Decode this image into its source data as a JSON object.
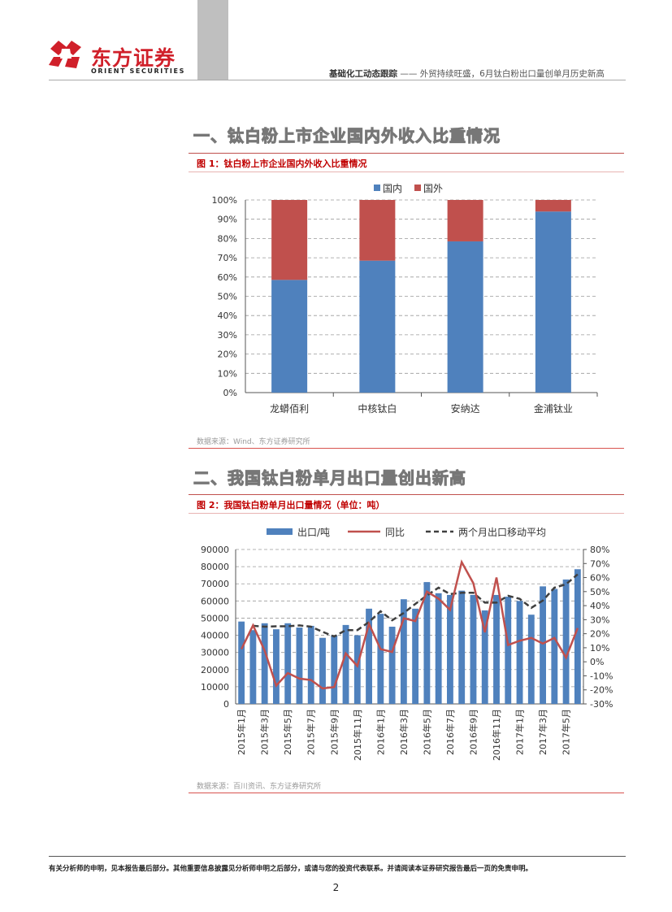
{
  "header": {
    "brand_cn": "东方证券",
    "brand_en": "ORIENT  SECURITIES",
    "report_series": "基础化工动态跟踪",
    "report_dash": " —— ",
    "report_subtitle": "外贸持续旺盛，6月钛白粉出口量创单月历史新高"
  },
  "sections": [
    {
      "title": "一、钛白粉上市企业国内外收入比重情况"
    },
    {
      "title": "二、我国钛白粉单月出口量创出新高"
    }
  ],
  "figures": [
    {
      "title": "图 1：钛白粉上市企业国内外收入比重情况",
      "source": "数据来源：Wind、东方证券研究所"
    },
    {
      "title": "图 2：我国钛白粉单月出口量情况（单位：吨）",
      "source": "数据来源：百川资讯、东方证券研究所"
    }
  ],
  "footer": {
    "disclaimer": "有关分析师的申明，见本报告最后部分。其他重要信息披露见分析师申明之后部分，或请与您的投资代表联系。并请阅读本证券研究报告最后一页的免责申明。",
    "page_number": "2"
  },
  "chart_data": [
    {
      "type": "bar",
      "stacked": true,
      "categories": [
        "龙蟒佰利",
        "中核钛白",
        "安纳达",
        "金浦钛业"
      ],
      "series": [
        {
          "name": "国内",
          "color": "#4f81bd",
          "values": [
            58.5,
            68.5,
            78.5,
            94
          ]
        },
        {
          "name": "国外",
          "color": "#c0504d",
          "values": [
            41.5,
            31.5,
            21.5,
            6
          ]
        }
      ],
      "ylim": [
        0,
        100
      ],
      "yticks": [
        "0%",
        "10%",
        "20%",
        "30%",
        "40%",
        "50%",
        "60%",
        "70%",
        "80%",
        "90%",
        "100%"
      ],
      "legend": "top-center",
      "grid": true
    },
    {
      "type": "bar",
      "combo": true,
      "categories": [
        "2015年1月",
        "2015年2月",
        "2015年3月",
        "2015年4月",
        "2015年5月",
        "2015年6月",
        "2015年7月",
        "2015年8月",
        "2015年9月",
        "2015年10月",
        "2015年11月",
        "2015年12月",
        "2016年1月",
        "2016年2月",
        "2016年3月",
        "2016年4月",
        "2016年5月",
        "2016年6月",
        "2016年7月",
        "2016年8月",
        "2016年9月",
        "2016年10月",
        "2016年11月",
        "2016年12月",
        "2017年1月",
        "2017年2月",
        "2017年3月",
        "2017年4月",
        "2017年5月",
        "2017年6月"
      ],
      "xtick_labels": [
        "2015年1月",
        "2015年3月",
        "2015年5月",
        "2015年7月",
        "2015年9月",
        "2015年11月",
        "2016年1月",
        "2016年3月",
        "2016年5月",
        "2016年7月",
        "2016年9月",
        "2016年11月",
        "2017年1月",
        "2017年3月",
        "2017年5月"
      ],
      "series": [
        {
          "name": "出口/吨",
          "type": "bar",
          "axis": "left",
          "color": "#4f81bd",
          "values": [
            48000,
            43000,
            47000,
            43500,
            47000,
            44500,
            45500,
            38500,
            40000,
            46000,
            40000,
            55500,
            52500,
            45000,
            61000,
            55500,
            71000,
            64500,
            63500,
            66000,
            63500,
            54500,
            63500,
            62500,
            60000,
            52000,
            68500,
            67000,
            72500,
            78500
          ]
        },
        {
          "name": "同比",
          "type": "line",
          "axis": "right",
          "color": "#c0504d",
          "values": [
            9,
            26,
            8,
            -17,
            -8,
            -12,
            -13,
            -19,
            -18,
            6,
            -3,
            27,
            9,
            7,
            31,
            29,
            50,
            45,
            37,
            71,
            56,
            21,
            60,
            12,
            15,
            17,
            13,
            17,
            3,
            24
          ]
        },
        {
          "name": "两个月出口移动平均",
          "type": "line",
          "axis": "left",
          "dashed": true,
          "color": "#3f3f3f",
          "values": [
            null,
            45500,
            45000,
            45250,
            45250,
            45750,
            45000,
            42000,
            39250,
            43000,
            43000,
            47750,
            54000,
            48750,
            53000,
            58250,
            63250,
            67750,
            64000,
            64750,
            64750,
            59000,
            59000,
            63000,
            61250,
            56000,
            60250,
            67750,
            69750,
            75500
          ]
        }
      ],
      "ylim": [
        0,
        90000
      ],
      "yticks_left": [
        "0",
        "10000",
        "20000",
        "30000",
        "40000",
        "50000",
        "60000",
        "70000",
        "80000",
        "90000"
      ],
      "ylim_right": [
        -30,
        80
      ],
      "yticks_right": [
        "-30%",
        "-20%",
        "-10%",
        "0%",
        "10%",
        "20%",
        "30%",
        "40%",
        "50%",
        "60%",
        "70%",
        "80%"
      ],
      "legend": "top-center",
      "grid": true
    }
  ]
}
